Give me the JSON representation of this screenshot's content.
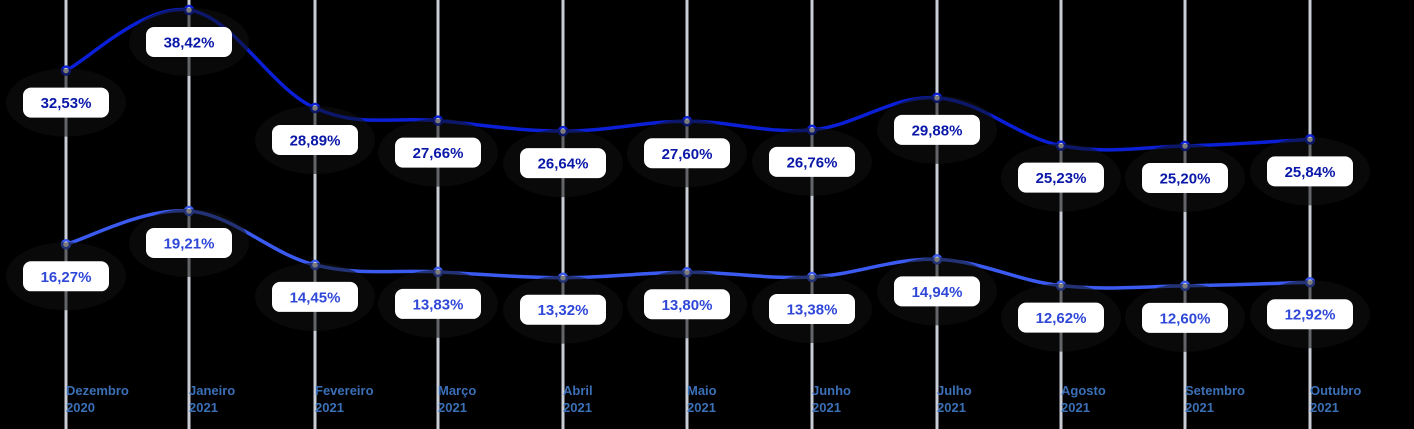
{
  "chart_data": {
    "type": "line",
    "title": "",
    "xlabel": "",
    "ylabel": "",
    "categories": [
      "Dezembro 2020",
      "Janeiro 2021",
      "Fevereiro 2021",
      "Março 2021",
      "Abril 2021",
      "Maio 2021",
      "Junho 2021",
      "Julho 2021",
      "Agosto 2021",
      "Setembro 2021",
      "Outubro 2021"
    ],
    "series": [
      {
        "values": [
          32.53,
          38.42,
          28.89,
          27.66,
          26.64,
          27.6,
          26.76,
          29.88,
          25.23,
          25.2,
          25.84
        ],
        "labels": [
          "32,53%",
          "38,42%",
          "28,89%",
          "27,66%",
          "26,64%",
          "27,60%",
          "26,76%",
          "29,88%",
          "25,23%",
          "25,20%",
          "25,84%"
        ],
        "color": "#0a1fd6",
        "text_color": "#0a18a8"
      },
      {
        "values": [
          16.27,
          19.21,
          14.45,
          13.83,
          13.32,
          13.8,
          13.38,
          14.94,
          12.62,
          12.6,
          12.92
        ],
        "labels": [
          "16,27%",
          "19,21%",
          "14,45%",
          "13,83%",
          "13,32%",
          "13,80%",
          "13,38%",
          "14,94%",
          "12,62%",
          "12,60%",
          "12,92%"
        ],
        "color": "#3a5af0",
        "text_color": "#3048d8"
      }
    ],
    "grid": true,
    "legend": "none",
    "colors": {
      "background": "#000000",
      "gridline": "#c8cdd6",
      "tick_text": "#3b6fb6",
      "label_box": "#ffffff"
    }
  }
}
